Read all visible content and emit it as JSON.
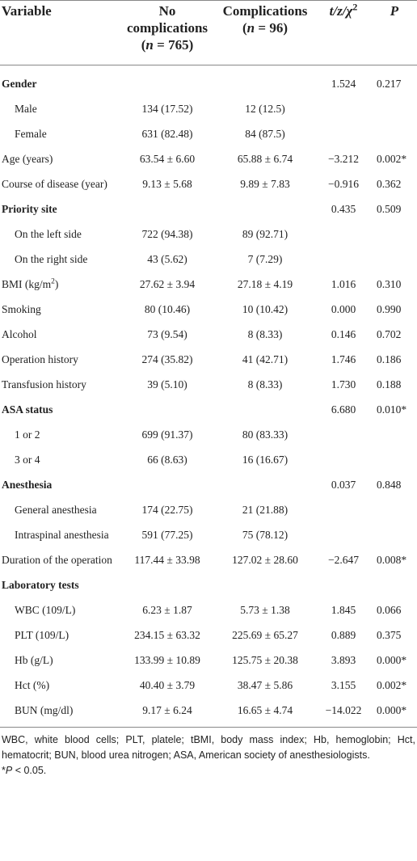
{
  "header": {
    "variable": "Variable",
    "no": {
      "text": "No complications",
      "pre": "(",
      "n": "n",
      "post": " = 765)"
    },
    "comp": {
      "text": "Complications",
      "pre": "(",
      "n": "n",
      "post": " = 96)"
    },
    "stat": {
      "text": "t/z/χ",
      "sup": "2"
    },
    "p": "P"
  },
  "rows": [
    {
      "style": "heading",
      "cells": [
        "Gender",
        null,
        null,
        "1.524",
        "0.217"
      ]
    },
    {
      "style": "sub",
      "cells": [
        "Male",
        "134 (17.52)",
        "12 (12.5)",
        null,
        null
      ]
    },
    {
      "style": "sub",
      "cells": [
        "Female",
        "631 (82.48)",
        "84 (87.5)",
        null,
        null
      ]
    },
    {
      "style": "plain",
      "cells": [
        "Age (years)",
        "63.54 ± 6.60",
        "65.88 ± 6.74",
        "−3.212",
        "0.002*"
      ]
    },
    {
      "style": "plain",
      "cells": [
        "Course of disease (year)",
        "9.13 ± 5.68",
        "9.89 ± 7.83",
        "−0.916",
        "0.362"
      ]
    },
    {
      "style": "heading",
      "cells": [
        "Priority site",
        null,
        null,
        "0.435",
        "0.509"
      ]
    },
    {
      "style": "sub",
      "cells": [
        "On the left side",
        "722 (94.38)",
        "89 (92.71)",
        null,
        null
      ]
    },
    {
      "style": "sub",
      "cells": [
        "On the right side",
        "43 (5.62)",
        "7 (7.29)",
        null,
        null
      ]
    },
    {
      "style": "plain",
      "cells": [
        {
          "text": "BMI (kg/m",
          "sup": "2",
          "after": ")"
        },
        "27.62 ± 3.94",
        "27.18 ± 4.19",
        "1.016",
        "0.310"
      ]
    },
    {
      "style": "plain",
      "cells": [
        "Smoking",
        "80 (10.46)",
        "10 (10.42)",
        "0.000",
        "0.990"
      ]
    },
    {
      "style": "plain",
      "cells": [
        "Alcohol",
        "73 (9.54)",
        "8 (8.33)",
        "0.146",
        "0.702"
      ]
    },
    {
      "style": "plain",
      "cells": [
        "Operation history",
        "274 (35.82)",
        "41 (42.71)",
        "1.746",
        "0.186"
      ]
    },
    {
      "style": "plain",
      "cells": [
        "Transfusion history",
        "39 (5.10)",
        "8 (8.33)",
        "1.730",
        "0.188"
      ]
    },
    {
      "style": "heading",
      "cells": [
        "ASA status",
        null,
        null,
        "6.680",
        "0.010*"
      ]
    },
    {
      "style": "sub",
      "cells": [
        "1 or 2",
        "699 (91.37)",
        "80 (83.33)",
        null,
        null
      ]
    },
    {
      "style": "sub",
      "cells": [
        "3 or 4",
        "66 (8.63)",
        "16 (16.67)",
        null,
        null
      ]
    },
    {
      "style": "heading",
      "cells": [
        "Anesthesia",
        null,
        null,
        "0.037",
        "0.848"
      ]
    },
    {
      "style": "sub",
      "cells": [
        "General anesthesia",
        "174 (22.75)",
        "21 (21.88)",
        null,
        null
      ]
    },
    {
      "style": "sub",
      "cells": [
        "Intraspinal anesthesia",
        "591 (77.25)",
        "75 (78.12)",
        null,
        null
      ]
    },
    {
      "style": "plain",
      "cells": [
        "Duration of the operation",
        "117.44 ± 33.98",
        "127.02 ± 28.60",
        "−2.647",
        "0.008*"
      ]
    },
    {
      "style": "heading",
      "cells": [
        "Laboratory tests",
        null,
        null,
        null,
        null
      ]
    },
    {
      "style": "sub",
      "cells": [
        "WBC (109/L)",
        "6.23 ± 1.87",
        "5.73 ± 1.38",
        "1.845",
        "0.066"
      ]
    },
    {
      "style": "sub",
      "cells": [
        "PLT (109/L)",
        "234.15 ± 63.32",
        "225.69 ± 65.27",
        "0.889",
        "0.375"
      ]
    },
    {
      "style": "sub",
      "cells": [
        "Hb (g/L)",
        "133.99 ± 10.89",
        "125.75 ± 20.38",
        "3.893",
        "0.000*"
      ]
    },
    {
      "style": "sub",
      "cells": [
        "Hct (%)",
        "40.40 ± 3.79",
        "38.47 ± 5.86",
        "3.155",
        "0.002*"
      ]
    },
    {
      "style": "sub",
      "cells": [
        "BUN (mg/dl)",
        "9.17 ± 6.24",
        "16.65 ± 4.74",
        "−14.022",
        "0.000*"
      ]
    }
  ],
  "footnotes": {
    "abbrev": "WBC, white blood cells; PLT, platele; tBMI, body mass index; Hb, hemoglobin; Hct, hematocrit; BUN, blood urea nitrogen; ASA, American society of anesthesiologists.",
    "sig": {
      "star": "*",
      "p": "P",
      "rest": " < 0.05."
    }
  }
}
